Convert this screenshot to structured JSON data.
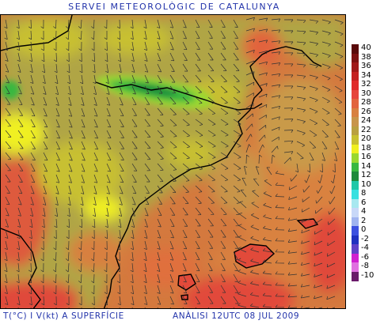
{
  "header": {
    "title": "SERVEI METEOROLÒGIC DE CATALUNYA"
  },
  "footer": {
    "left": "T(°C) I V(kt) A SUPERFÍCIE",
    "right": "ANÀLISI 12UTC 08 JUL 2009"
  },
  "legend": {
    "entries": [
      {
        "label": "40",
        "color": "#5a0a0a"
      },
      {
        "label": "38",
        "color": "#7d1010"
      },
      {
        "label": "36",
        "color": "#a01818"
      },
      {
        "label": "34",
        "color": "#c42020"
      },
      {
        "label": "32",
        "color": "#e02a2a"
      },
      {
        "label": "30",
        "color": "#e6463c"
      },
      {
        "label": "28",
        "color": "#e2643e"
      },
      {
        "label": "26",
        "color": "#d88040"
      },
      {
        "label": "24",
        "color": "#c8954a"
      },
      {
        "label": "22",
        "color": "#b9a040"
      },
      {
        "label": "20",
        "color": "#c8c030"
      },
      {
        "label": "18",
        "color": "#f0f020"
      },
      {
        "label": "16",
        "color": "#9ad830"
      },
      {
        "label": "14",
        "color": "#38b840"
      },
      {
        "label": "12",
        "color": "#1d8a3a"
      },
      {
        "label": "10",
        "color": "#20c8a8"
      },
      {
        "label": "8",
        "color": "#38e0e0"
      },
      {
        "label": "6",
        "color": "#a8e8f0"
      },
      {
        "label": "4",
        "color": "#c8d8f8"
      },
      {
        "label": "2",
        "color": "#a0b4f0"
      },
      {
        "label": "0",
        "color": "#3c50e0"
      },
      {
        "label": "-2",
        "color": "#2030c0"
      },
      {
        "label": "-4",
        "color": "#6040c8"
      },
      {
        "label": "-6",
        "color": "#d020d0"
      },
      {
        "label": "-8",
        "color": "#e070e0"
      },
      {
        "label": "-10",
        "color": "#6a1a6a"
      }
    ]
  },
  "colors": {
    "sea": "#d4793e",
    "land_warm": "#b0a545",
    "inland_hot": "#de5a3c",
    "mountain_cool": "#38b840",
    "mountain_cold": "#1d8a3a",
    "plain_yellow": "#e8e830",
    "coast_line": "#000000"
  }
}
